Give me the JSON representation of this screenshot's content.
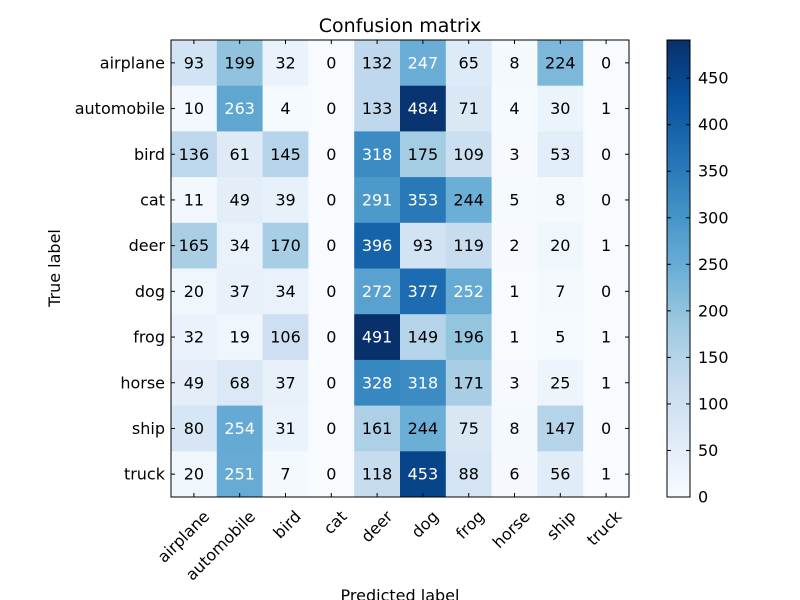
{
  "chart_data": {
    "type": "heatmap",
    "title": "Confusion matrix",
    "xlabel": "Predicted label",
    "ylabel": "True label",
    "x_categories": [
      "airplane",
      "automobile",
      "bird",
      "cat",
      "deer",
      "dog",
      "frog",
      "horse",
      "ship",
      "truck"
    ],
    "y_categories": [
      "airplane",
      "automobile",
      "bird",
      "cat",
      "deer",
      "dog",
      "frog",
      "horse",
      "ship",
      "truck"
    ],
    "values": [
      [
        93,
        199,
        32,
        0,
        132,
        247,
        65,
        8,
        224,
        0
      ],
      [
        10,
        263,
        4,
        0,
        133,
        484,
        71,
        4,
        30,
        1
      ],
      [
        136,
        61,
        145,
        0,
        318,
        175,
        109,
        3,
        53,
        0
      ],
      [
        11,
        49,
        39,
        0,
        291,
        353,
        244,
        5,
        8,
        0
      ],
      [
        165,
        34,
        170,
        0,
        396,
        93,
        119,
        2,
        20,
        1
      ],
      [
        20,
        37,
        34,
        0,
        272,
        377,
        252,
        1,
        7,
        0
      ],
      [
        32,
        19,
        106,
        0,
        491,
        149,
        196,
        1,
        5,
        1
      ],
      [
        49,
        68,
        37,
        0,
        328,
        318,
        171,
        3,
        25,
        1
      ],
      [
        80,
        254,
        31,
        0,
        161,
        244,
        75,
        8,
        147,
        0
      ],
      [
        20,
        251,
        7,
        0,
        118,
        453,
        88,
        6,
        56,
        1
      ]
    ],
    "colormap": "Blues",
    "vmin": 0,
    "vmax": 491,
    "colorbar_ticks": [
      0,
      50,
      100,
      150,
      200,
      250,
      300,
      350,
      400,
      450
    ],
    "label_color_threshold": 245.5,
    "x_tick_rotation": 45,
    "grid": false
  }
}
